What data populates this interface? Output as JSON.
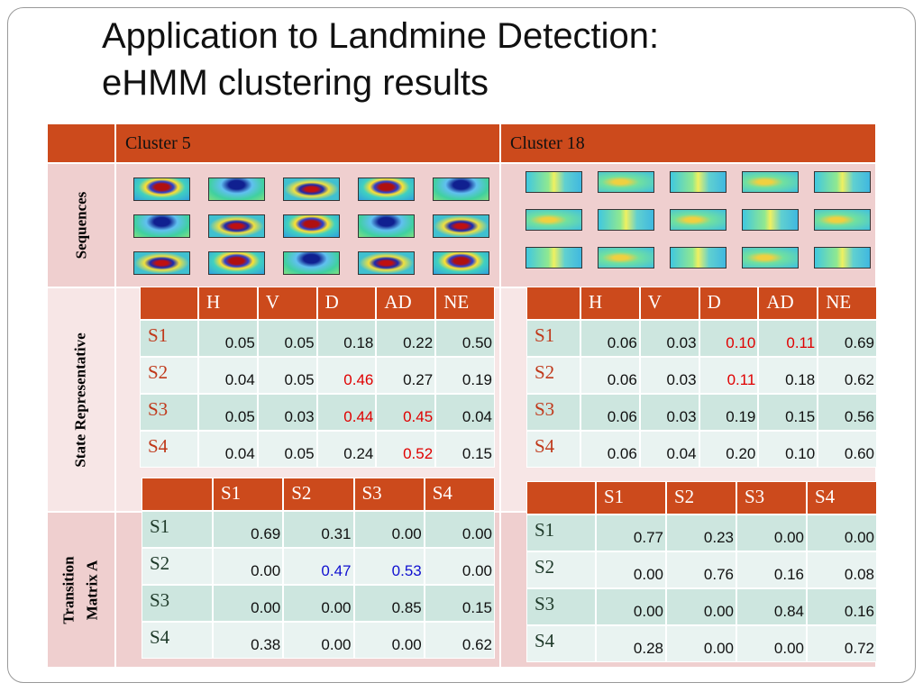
{
  "title": [
    "Application to Landmine Detection:",
    "eHMM clustering results"
  ],
  "header": [
    "Cluster 5",
    "Cluster 18"
  ],
  "row_labels": [
    [
      "Sequences"
    ],
    [
      "State Representative"
    ],
    [
      "Transition",
      "Matrix  A"
    ]
  ],
  "state_tables": [
    {
      "columns": [
        "H",
        "V",
        "D",
        "AD",
        "NE"
      ],
      "rows": [
        {
          "label": "S1",
          "values": [
            "0.05",
            "0.05",
            "0.18",
            "0.22",
            "0.50"
          ]
        },
        {
          "label": "S2",
          "values": [
            "0.04",
            "0.05",
            "0.46",
            "0.27",
            "0.19"
          ]
        },
        {
          "label": "S3",
          "values": [
            "0.05",
            "0.03",
            "0.44",
            "0.45",
            "0.04"
          ]
        },
        {
          "label": "S4",
          "values": [
            "0.04",
            "0.05",
            "0.24",
            "0.52",
            "0.15"
          ]
        }
      ],
      "highlight": {
        "color": "#e00000",
        "cells": [
          [
            1,
            2
          ],
          [
            2,
            2
          ],
          [
            2,
            3
          ],
          [
            3,
            3
          ]
        ]
      }
    },
    {
      "columns": [
        "H",
        "V",
        "D",
        "AD",
        "NE"
      ],
      "rows": [
        {
          "label": "S1",
          "values": [
            "0.06",
            "0.03",
            "0.10",
            "0.11",
            "0.69"
          ]
        },
        {
          "label": "S2",
          "values": [
            "0.06",
            "0.03",
            "0.11",
            "0.18",
            "0.62"
          ]
        },
        {
          "label": "S3",
          "values": [
            "0.06",
            "0.03",
            "0.19",
            "0.15",
            "0.56"
          ]
        },
        {
          "label": "S4",
          "values": [
            "0.06",
            "0.04",
            "0.20",
            "0.10",
            "0.60"
          ]
        }
      ],
      "highlight": {
        "color": "#e00000",
        "cells": [
          [
            0,
            2
          ],
          [
            0,
            3
          ],
          [
            1,
            2
          ]
        ]
      }
    }
  ],
  "transition_tables": [
    {
      "columns": [
        "S1",
        "S2",
        "S3",
        "S4"
      ],
      "rows": [
        {
          "label": "S1",
          "values": [
            "0.69",
            "0.31",
            "0.00",
            "0.00"
          ]
        },
        {
          "label": "S2",
          "values": [
            "0.00",
            "0.47",
            "0.53",
            "0.00"
          ]
        },
        {
          "label": "S3",
          "values": [
            "0.00",
            "0.00",
            "0.85",
            "0.15"
          ]
        },
        {
          "label": "S4",
          "values": [
            "0.38",
            "0.00",
            "0.00",
            "0.62"
          ]
        }
      ],
      "highlight": {
        "color": "#1010d0",
        "cells": [
          [
            1,
            1
          ],
          [
            1,
            2
          ]
        ]
      }
    },
    {
      "columns": [
        "S1",
        "S2",
        "S3",
        "S4"
      ],
      "rows": [
        {
          "label": "S1",
          "values": [
            "0.77",
            "0.23",
            "0.00",
            "0.00"
          ]
        },
        {
          "label": "S2",
          "values": [
            "0.00",
            "0.76",
            "0.16",
            "0.08"
          ]
        },
        {
          "label": "S3",
          "values": [
            "0.00",
            "0.00",
            "0.84",
            "0.16"
          ]
        },
        {
          "label": "S4",
          "values": [
            "0.28",
            "0.00",
            "0.00",
            "0.72"
          ]
        }
      ]
    }
  ]
}
